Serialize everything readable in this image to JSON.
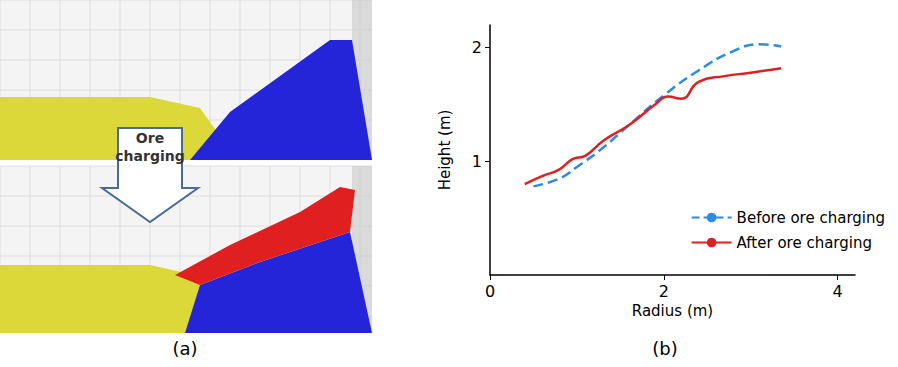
{
  "chart_data": {
    "type": "line",
    "xlabel": "Radius (m)",
    "ylabel": "Height (m)",
    "xlim": [
      0,
      4.2
    ],
    "xticks": [
      0,
      2,
      4
    ],
    "ylim": [
      0,
      2.2
    ],
    "yticks": [
      1,
      2
    ],
    "grid": false,
    "legend": "lower right",
    "series": [
      {
        "name": "Before ore charging",
        "color": "#2b8be6",
        "line_style": "dashed",
        "x": [
          0.5,
          0.8,
          1.0,
          1.3,
          1.6,
          2.0,
          2.4,
          2.8,
          3.1,
          3.35
        ],
        "values": [
          0.78,
          0.85,
          0.95,
          1.12,
          1.32,
          1.58,
          1.8,
          1.97,
          2.03,
          2.01
        ]
      },
      {
        "name": "After ore charging",
        "color": "#e02020",
        "line_style": "solid",
        "x": [
          0.4,
          0.6,
          0.8,
          0.95,
          1.1,
          1.3,
          1.6,
          1.9,
          2.05,
          2.2,
          2.4,
          2.7,
          3.0,
          3.35
        ],
        "values": [
          0.8,
          0.87,
          0.93,
          1.02,
          1.05,
          1.18,
          1.32,
          1.5,
          1.57,
          1.55,
          1.7,
          1.75,
          1.78,
          1.82
        ]
      }
    ]
  },
  "figure": {
    "panel_a": {
      "label": "(a)",
      "arrow_text": "Ore charging"
    },
    "panel_b": {
      "label": "(b)"
    }
  }
}
